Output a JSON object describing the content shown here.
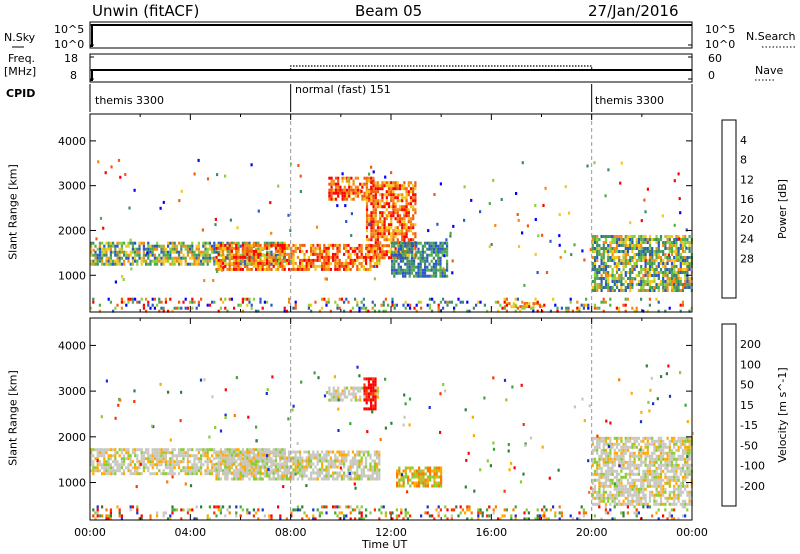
{
  "header": {
    "station": "Unwin (fitACF)",
    "beam": "Beam 05",
    "date": "27/Jan/2016"
  },
  "top_panels": {
    "nsky_label": "N.Sky",
    "nsky_ticks": [
      "10^5",
      "10^0"
    ],
    "nsearch_label": "N.Search",
    "freq_label_1": "Freq.",
    "freq_label_2": "[MHz]",
    "freq_ticks": [
      "18",
      "8"
    ],
    "nave_label": "Nave",
    "nave_ticks": [
      "60",
      "0"
    ],
    "cpid_label": "CPID",
    "cpid_segments": [
      {
        "name": "themis 3300",
        "start_h": 0,
        "end_h": 8
      },
      {
        "name": "normal (fast) 151",
        "start_h": 8,
        "end_h": 20
      },
      {
        "name": "themis 3300",
        "start_h": 20,
        "end_h": 24
      }
    ]
  },
  "colors": {
    "power": [
      "#0000ff",
      "#2b57c7",
      "#3e8a69",
      "#4fae49",
      "#8bd13b",
      "#f4c91b",
      "#f28b14",
      "#f25b0e",
      "#ff0000"
    ],
    "velocity": [
      "#1b2fd6",
      "#2f7d3b",
      "#3fa33a",
      "#88cc33",
      "#c8c8c0",
      "#ffaa00",
      "#ff7700",
      "#ff3300",
      "#ff0000"
    ]
  },
  "chart_data": [
    {
      "type": "heatmap",
      "name": "power",
      "xlabel": "",
      "ylabel": "Slant Range [km]",
      "xlim": [
        0,
        24
      ],
      "ylim": [
        180,
        4600
      ],
      "yticks": [
        1000,
        2000,
        3000,
        4000
      ],
      "colorbar": {
        "label": "Power [dB]",
        "ticks": [
          "4",
          "8",
          "12",
          "16",
          "20",
          "24",
          "28"
        ]
      },
      "regions": [
        {
          "t0": 0.0,
          "t1": 7.8,
          "r0": 1250,
          "r1": 1750,
          "level": "mixed"
        },
        {
          "t0": 5.0,
          "t1": 11.5,
          "r0": 1100,
          "r1": 1700,
          "level": "high"
        },
        {
          "t0": 9.5,
          "t1": 11.3,
          "r0": 2700,
          "r1": 3200,
          "level": "high"
        },
        {
          "t0": 11.0,
          "t1": 13.0,
          "r0": 1400,
          "r1": 3100,
          "level": "high"
        },
        {
          "t0": 12.0,
          "t1": 14.2,
          "r0": 950,
          "r1": 1750,
          "level": "low"
        },
        {
          "t0": 20.0,
          "t1": 24.0,
          "r0": 650,
          "r1": 1900,
          "level": "mixed"
        },
        {
          "t0": 16.5,
          "t1": 18.0,
          "r0": 280,
          "r1": 400,
          "level": "high"
        }
      ]
    },
    {
      "type": "heatmap",
      "name": "velocity",
      "xlabel": "Time UT",
      "ylabel": "Slant Range [km]",
      "xlim": [
        0,
        24
      ],
      "xticks": [
        "00:00",
        "04:00",
        "08:00",
        "12:00",
        "16:00",
        "20:00",
        "00:00"
      ],
      "ylim": [
        180,
        4600
      ],
      "yticks": [
        1000,
        2000,
        3000,
        4000
      ],
      "colorbar": {
        "label": "Velocity [m s^-1]",
        "ticks": [
          "200",
          "100",
          "50",
          "15",
          "-15",
          "-50",
          "-100",
          "-200"
        ]
      },
      "regions": [
        {
          "t0": 0.0,
          "t1": 7.8,
          "r0": 1200,
          "r1": 1750,
          "level": "ground"
        },
        {
          "t0": 5.0,
          "t1": 11.5,
          "r0": 1100,
          "r1": 1700,
          "level": "ground"
        },
        {
          "t0": 9.5,
          "t1": 11.5,
          "r0": 2800,
          "r1": 3100,
          "level": "ground"
        },
        {
          "t0": 10.9,
          "t1": 11.4,
          "r0": 2600,
          "r1": 3300,
          "level": "neg"
        },
        {
          "t0": 12.2,
          "t1": 14.0,
          "r0": 950,
          "r1": 1350,
          "level": "pos"
        },
        {
          "t0": 20.0,
          "t1": 24.0,
          "r0": 500,
          "r1": 2000,
          "level": "ground"
        }
      ]
    }
  ]
}
